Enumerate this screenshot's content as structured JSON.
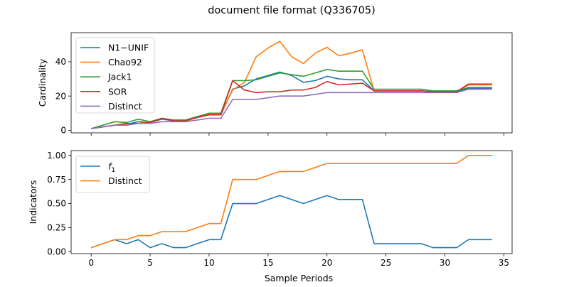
{
  "chart_data": [
    {
      "type": "line",
      "title": "document file format (Q336705)",
      "ylabel": "Cardinality",
      "xlabel": "",
      "xlim": [
        -1.7,
        35.7
      ],
      "ylim": [
        -1.5,
        57
      ],
      "x_ticks": [
        0,
        5,
        10,
        15,
        20,
        25,
        30,
        35
      ],
      "y_ticks": [
        0,
        20,
        40
      ],
      "y_tick_labels": [
        "0",
        "20",
        "40"
      ],
      "legend_position": "upper left",
      "x": [
        0,
        1,
        2,
        3,
        4,
        5,
        6,
        7,
        8,
        9,
        10,
        11,
        12,
        13,
        14,
        15,
        16,
        17,
        18,
        19,
        20,
        21,
        22,
        23,
        24,
        25,
        26,
        27,
        28,
        29,
        30,
        31,
        32,
        33,
        34
      ],
      "series": [
        {
          "name": "N1−UNIF",
          "color": "#1f77b4",
          "values": [
            1,
            2,
            3,
            3.5,
            5,
            4.5,
            6.5,
            5.5,
            5.5,
            7.5,
            9,
            9,
            24,
            26,
            30,
            32,
            34,
            32,
            28,
            29,
            31.5,
            30,
            29.5,
            29.5,
            23,
            23,
            23,
            23,
            23,
            22.5,
            22.5,
            22.5,
            24.5,
            24.5,
            24.5
          ]
        },
        {
          "name": "Chao92",
          "color": "#ff7f0e",
          "values": [
            1,
            2,
            3,
            3.5,
            4,
            5,
            7,
            6,
            6,
            8,
            9.5,
            9.5,
            23.5,
            28,
            43,
            48,
            52,
            43,
            39,
            45,
            48.5,
            43.5,
            45,
            47,
            23,
            23,
            23,
            23,
            23,
            22.5,
            22.5,
            22.5,
            26.5,
            26.5,
            26.5
          ]
        },
        {
          "name": "Jack1",
          "color": "#2ca02c",
          "values": [
            1,
            3,
            5,
            4.5,
            6.5,
            5,
            7,
            6,
            6,
            8,
            10,
            10,
            29,
            29,
            29.5,
            31.5,
            33.5,
            32.5,
            31.5,
            33.5,
            35.5,
            34.5,
            34.5,
            34.5,
            24,
            24,
            24,
            24,
            24,
            23,
            23,
            23,
            25,
            25,
            25
          ]
        },
        {
          "name": "SOR",
          "color": "#d62728",
          "values": [
            1,
            2,
            3,
            4,
            4,
            4.5,
            7,
            5.5,
            5.5,
            7.5,
            9,
            9,
            29,
            23.5,
            22,
            22.5,
            22.5,
            23.5,
            23.5,
            25,
            28.5,
            26.5,
            27,
            27.5,
            23,
            23,
            23,
            23,
            23,
            22.5,
            22.5,
            22.5,
            27,
            27,
            27
          ]
        },
        {
          "name": "Distinct",
          "color": "#9467bd",
          "values": [
            1,
            2,
            3,
            3,
            4,
            4,
            5,
            5,
            5,
            6,
            7,
            7,
            18,
            18,
            18,
            19,
            20,
            20,
            20,
            21,
            22,
            22,
            22,
            22,
            22,
            22,
            22,
            22,
            22,
            22,
            22,
            22,
            24,
            24,
            24
          ]
        }
      ]
    },
    {
      "type": "line",
      "title": "",
      "ylabel": "Indicators",
      "xlabel": "Sample Periods",
      "xlim": [
        -1.7,
        35.7
      ],
      "ylim": [
        -0.02,
        1.05
      ],
      "x_ticks": [
        0,
        5,
        10,
        15,
        20,
        25,
        30,
        35
      ],
      "x_tick_labels": [
        "0",
        "5",
        "10",
        "15",
        "20",
        "25",
        "30",
        "35"
      ],
      "y_ticks": [
        0,
        0.25,
        0.5,
        0.75,
        1.0
      ],
      "y_tick_labels": [
        "0.00",
        "0.25",
        "0.50",
        "0.75",
        "1.00"
      ],
      "legend_position": "upper left",
      "x": [
        0,
        1,
        2,
        3,
        4,
        5,
        6,
        7,
        8,
        9,
        10,
        11,
        12,
        13,
        14,
        15,
        16,
        17,
        18,
        19,
        20,
        21,
        22,
        23,
        24,
        25,
        26,
        27,
        28,
        29,
        30,
        31,
        32,
        33,
        34
      ],
      "series": [
        {
          "name": "f1",
          "label_main": "f",
          "label_sub": "1",
          "color": "#1f77b4",
          "values": [
            0.042,
            0.083,
            0.125,
            0.083,
            0.125,
            0.042,
            0.083,
            0.042,
            0.042,
            0.083,
            0.125,
            0.125,
            0.5,
            0.5,
            0.5,
            0.542,
            0.583,
            0.542,
            0.5,
            0.542,
            0.583,
            0.542,
            0.542,
            0.542,
            0.083,
            0.083,
            0.083,
            0.083,
            0.083,
            0.042,
            0.042,
            0.042,
            0.125,
            0.125,
            0.125
          ]
        },
        {
          "name": "Distinct",
          "color": "#ff7f0e",
          "values": [
            0.042,
            0.083,
            0.125,
            0.125,
            0.167,
            0.167,
            0.208,
            0.208,
            0.208,
            0.25,
            0.292,
            0.292,
            0.75,
            0.75,
            0.75,
            0.792,
            0.833,
            0.833,
            0.833,
            0.875,
            0.917,
            0.917,
            0.917,
            0.917,
            0.917,
            0.917,
            0.917,
            0.917,
            0.917,
            0.917,
            0.917,
            0.917,
            1.0,
            1.0,
            1.0
          ]
        }
      ]
    }
  ]
}
